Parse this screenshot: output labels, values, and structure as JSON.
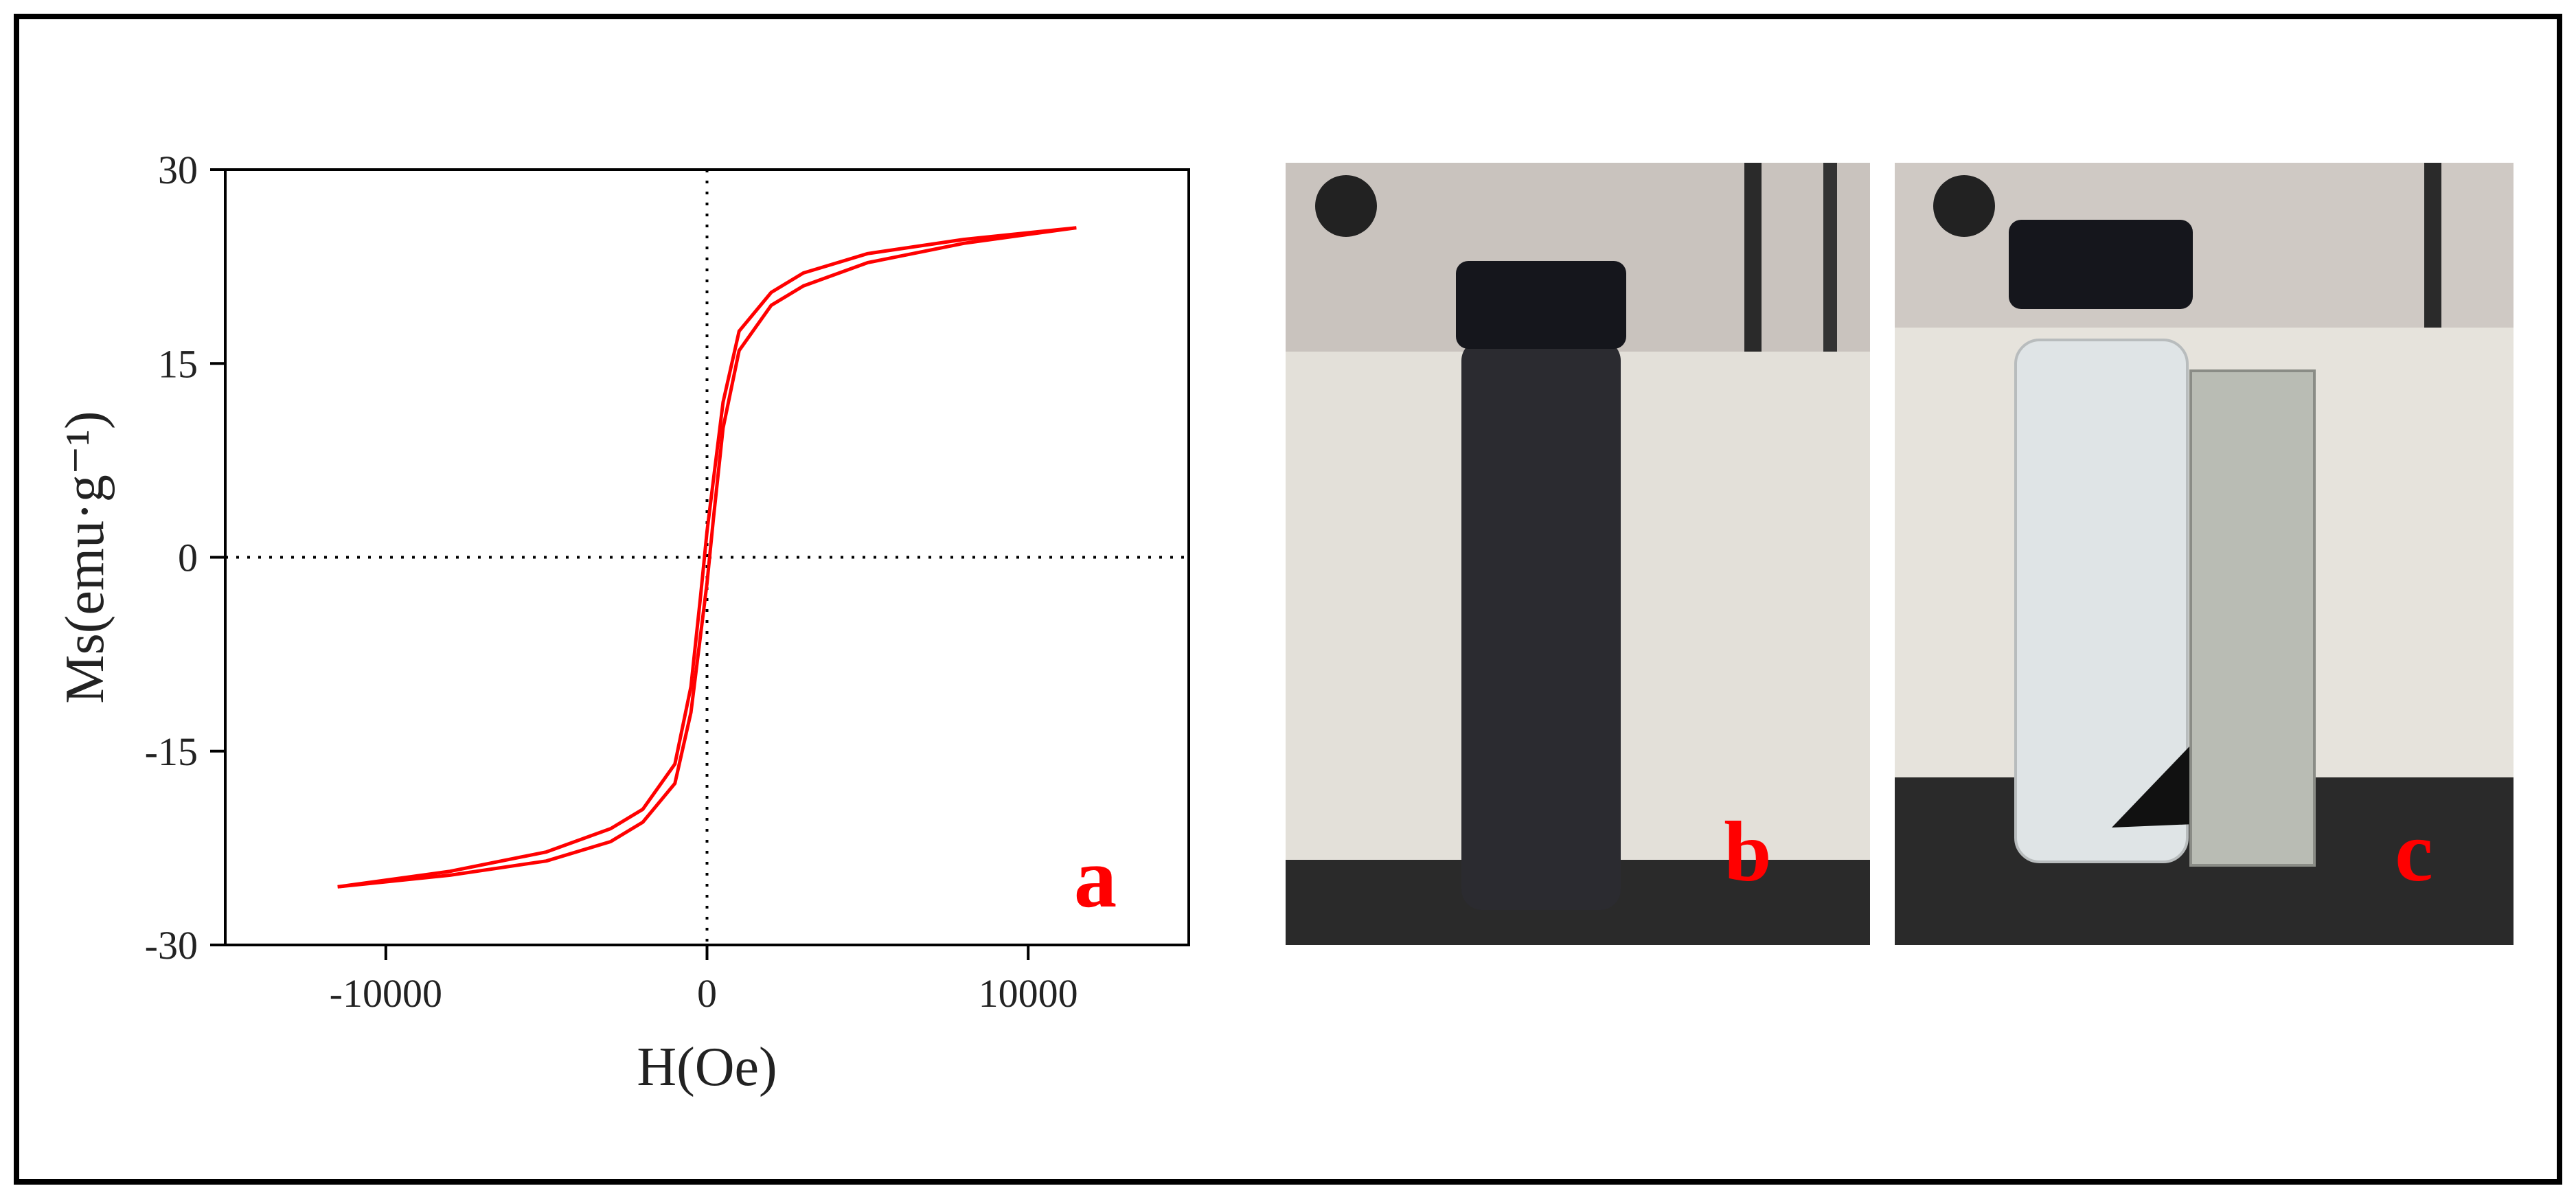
{
  "chart_data": {
    "type": "line",
    "panel_label": "a",
    "x_label": "H(Oe)",
    "y_label": "Ms(emu·g⁻¹)",
    "x": [
      -11500,
      -8000,
      -5000,
      -3000,
      -2000,
      -1000,
      -500,
      -200,
      0,
      200,
      500,
      1000,
      2000,
      3000,
      5000,
      8000,
      11500
    ],
    "series": [
      {
        "color": "#ff0000",
        "values": [
          -25.5,
          -24.3,
          -22.8,
          -21,
          -19.5,
          -16,
          -10,
          -3,
          2,
          6,
          12,
          17.5,
          20.5,
          22,
          23.5,
          24.6,
          25.5
        ]
      },
      {
        "color": "#ff0000",
        "values": [
          -25.5,
          -24.6,
          -23.5,
          -22,
          -20.5,
          -17.5,
          -12,
          -6,
          -2,
          3,
          10,
          16,
          19.5,
          21,
          22.8,
          24.3,
          25.5
        ]
      }
    ],
    "xlim": [
      -15000,
      15000
    ],
    "xticks": [
      -10000,
      0,
      10000
    ],
    "ylim": [
      -30,
      30
    ],
    "yticks": [
      -30,
      -15,
      0,
      15,
      30
    ],
    "zero_lines": true
  },
  "photos": [
    {
      "label": "b"
    },
    {
      "label": "c"
    }
  ]
}
